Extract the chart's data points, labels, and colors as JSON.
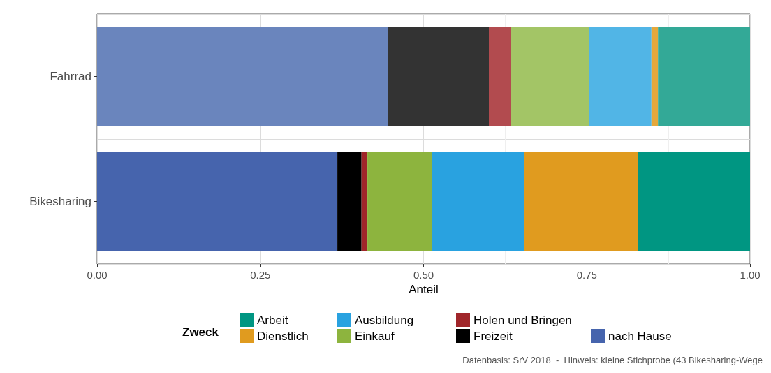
{
  "chart_data": {
    "type": "bar",
    "orientation": "horizontal",
    "stacked": true,
    "xlabel": "Anteil",
    "legend_title": "Zweck",
    "legend": "bottom",
    "grid": true,
    "categories": [
      "Fahrrad",
      "Bikesharing"
    ],
    "xlim": [
      0,
      1
    ],
    "xticks": [
      {
        "value": 0,
        "label": "0.00"
      },
      {
        "value": 0.25,
        "label": "0.25"
      },
      {
        "value": 0.5,
        "label": "0.50"
      },
      {
        "value": 0.75,
        "label": "0.75"
      },
      {
        "value": 1,
        "label": "1.00"
      }
    ],
    "series": [
      {
        "name": "nach Hause",
        "color": "#4664ad",
        "colors": [
          "#6a85bd",
          "#4664ad"
        ],
        "values": [
          0.445,
          0.368
        ]
      },
      {
        "name": "Freizeit",
        "color": "#000000",
        "colors": [
          "#333333",
          "#000000"
        ],
        "values": [
          0.155,
          0.037
        ]
      },
      {
        "name": "Holen und Bringen",
        "color": "#a0262a",
        "colors": [
          "#b24b4f",
          "#a0262a"
        ],
        "values": [
          0.034,
          0.009
        ]
      },
      {
        "name": "Einkauf",
        "color": "#8db43e",
        "colors": [
          "#a3c566",
          "#8db43e"
        ],
        "values": [
          0.12,
          0.099
        ]
      },
      {
        "name": "Ausbildung",
        "color": "#29a2e0",
        "colors": [
          "#51b5e6",
          "#29a2e0"
        ],
        "values": [
          0.095,
          0.141
        ]
      },
      {
        "name": "Dienstlich",
        "color": "#e09b1f",
        "colors": [
          "#e5a83b",
          "#e09b1f"
        ],
        "values": [
          0.01,
          0.174
        ]
      },
      {
        "name": "Arbeit",
        "color": "#009682",
        "colors": [
          "#33a997",
          "#009682"
        ],
        "values": [
          0.141,
          0.172
        ]
      }
    ],
    "annotations": [
      "Datenbasis: SrV 2018  -  Hinweis: kleine Stichprobe (43 Bikesharing-Wege"
    ]
  }
}
